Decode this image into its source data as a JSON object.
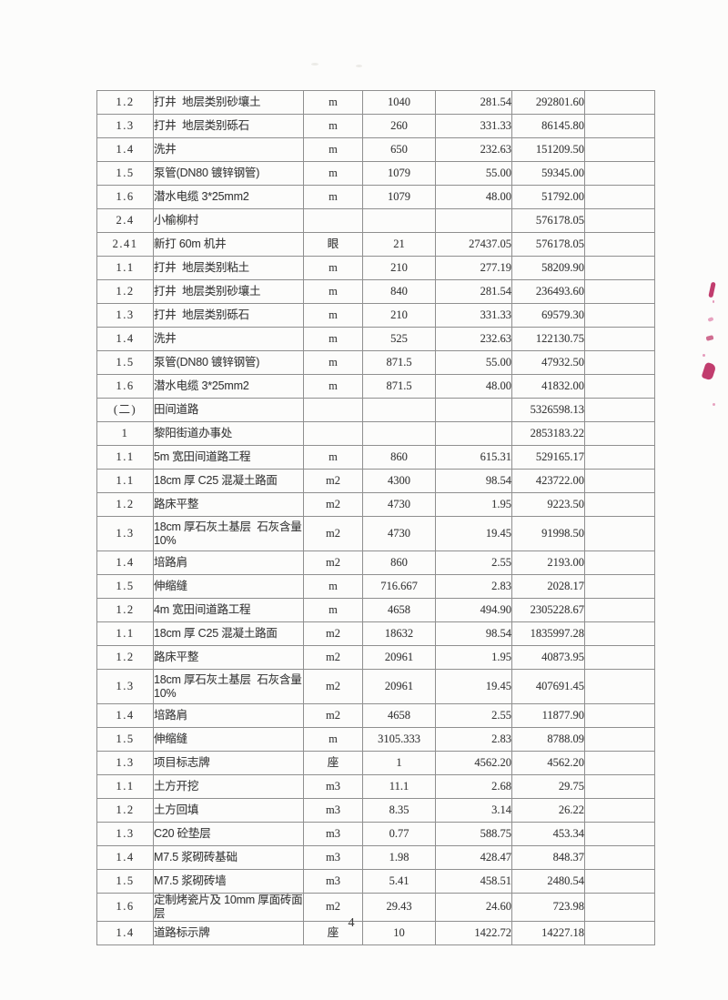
{
  "page": {
    "number": "4"
  },
  "scan_marks": {
    "color": "#c13d6e",
    "color_light": "#d8689a"
  },
  "table": {
    "rows": [
      {
        "seq": "1.2",
        "name": "打井  地层类别砂壤土",
        "unit": "m",
        "qty": "1040",
        "price": "281.54",
        "amount": "292801.60",
        "blank": ""
      },
      {
        "seq": "1.3",
        "name": "打井  地层类别砾石",
        "unit": "m",
        "qty": "260",
        "price": "331.33",
        "amount": "86145.80",
        "blank": ""
      },
      {
        "seq": "1.4",
        "name": "洗井",
        "unit": "m",
        "qty": "650",
        "price": "232.63",
        "amount": "151209.50",
        "blank": ""
      },
      {
        "seq": "1.5",
        "name": "泵管(DN80 镀锌钢管)",
        "unit": "m",
        "qty": "1079",
        "price": "55.00",
        "amount": "59345.00",
        "blank": ""
      },
      {
        "seq": "1.6",
        "name": "潜水电缆 3*25mm2",
        "unit": "m",
        "qty": "1079",
        "price": "48.00",
        "amount": "51792.00",
        "blank": ""
      },
      {
        "seq": "2.4",
        "name": "小榆柳村",
        "unit": "",
        "qty": "",
        "price": "",
        "amount": "576178.05",
        "blank": ""
      },
      {
        "seq": "2.41",
        "name": "新打 60m 机井",
        "unit": "眼",
        "qty": "21",
        "price": "27437.05",
        "amount": "576178.05",
        "blank": ""
      },
      {
        "seq": "1.1",
        "name": "打井  地层类别粘土",
        "unit": "m",
        "qty": "210",
        "price": "277.19",
        "amount": "58209.90",
        "blank": ""
      },
      {
        "seq": "1.2",
        "name": "打井  地层类别砂壤土",
        "unit": "m",
        "qty": "840",
        "price": "281.54",
        "amount": "236493.60",
        "blank": ""
      },
      {
        "seq": "1.3",
        "name": "打井  地层类别砾石",
        "unit": "m",
        "qty": "210",
        "price": "331.33",
        "amount": "69579.30",
        "blank": ""
      },
      {
        "seq": "1.4",
        "name": "洗井",
        "unit": "m",
        "qty": "525",
        "price": "232.63",
        "amount": "122130.75",
        "blank": ""
      },
      {
        "seq": "1.5",
        "name": "泵管(DN80 镀锌钢管)",
        "unit": "m",
        "qty": "871.5",
        "price": "55.00",
        "amount": "47932.50",
        "blank": ""
      },
      {
        "seq": "1.6",
        "name": "潜水电缆 3*25mm2",
        "unit": "m",
        "qty": "871.5",
        "price": "48.00",
        "amount": "41832.00",
        "blank": ""
      },
      {
        "seq": "(二)",
        "name": "田间道路",
        "unit": "",
        "qty": "",
        "price": "",
        "amount": "5326598.13",
        "blank": ""
      },
      {
        "seq": "1",
        "name": "黎阳街道办事处",
        "unit": "",
        "qty": "",
        "price": "",
        "amount": "2853183.22",
        "blank": ""
      },
      {
        "seq": "1.1",
        "name": "5m 宽田间道路工程",
        "unit": "m",
        "qty": "860",
        "price": "615.31",
        "amount": "529165.17",
        "blank": ""
      },
      {
        "seq": "1.1",
        "name": "18cm 厚 C25 混凝土路面",
        "unit": "m2",
        "qty": "4300",
        "price": "98.54",
        "amount": "423722.00",
        "blank": ""
      },
      {
        "seq": "1.2",
        "name": "路床平整",
        "unit": "m2",
        "qty": "4730",
        "price": "1.95",
        "amount": "9223.50",
        "blank": ""
      },
      {
        "seq": "1.3",
        "name": "18cm 厚石灰土基层  石灰含量\n10%",
        "unit": "m2",
        "qty": "4730",
        "price": "19.45",
        "amount": "91998.50",
        "blank": "",
        "tall": true
      },
      {
        "seq": "1.4",
        "name": "培路肩",
        "unit": "m2",
        "qty": "860",
        "price": "2.55",
        "amount": "2193.00",
        "blank": ""
      },
      {
        "seq": "1.5",
        "name": "伸缩缝",
        "unit": "m",
        "qty": "716.667",
        "price": "2.83",
        "amount": "2028.17",
        "blank": ""
      },
      {
        "seq": "1.2",
        "name": "4m 宽田间道路工程",
        "unit": "m",
        "qty": "4658",
        "price": "494.90",
        "amount": "2305228.67",
        "blank": ""
      },
      {
        "seq": "1.1",
        "name": "18cm 厚 C25 混凝土路面",
        "unit": "m2",
        "qty": "18632",
        "price": "98.54",
        "amount": "1835997.28",
        "blank": ""
      },
      {
        "seq": "1.2",
        "name": "路床平整",
        "unit": "m2",
        "qty": "20961",
        "price": "1.95",
        "amount": "40873.95",
        "blank": ""
      },
      {
        "seq": "1.3",
        "name": "18cm 厚石灰土基层  石灰含量\n10%",
        "unit": "m2",
        "qty": "20961",
        "price": "19.45",
        "amount": "407691.45",
        "blank": "",
        "tall": true
      },
      {
        "seq": "1.4",
        "name": "培路肩",
        "unit": "m2",
        "qty": "4658",
        "price": "2.55",
        "amount": "11877.90",
        "blank": ""
      },
      {
        "seq": "1.5",
        "name": "伸缩缝",
        "unit": "m",
        "qty": "3105.333",
        "price": "2.83",
        "amount": "8788.09",
        "blank": ""
      },
      {
        "seq": "1.3",
        "name": "项目标志牌",
        "unit": "座",
        "qty": "1",
        "price": "4562.20",
        "amount": "4562.20",
        "blank": ""
      },
      {
        "seq": "1.1",
        "name": "土方开挖",
        "unit": "m3",
        "qty": "11.1",
        "price": "2.68",
        "amount": "29.75",
        "blank": ""
      },
      {
        "seq": "1.2",
        "name": "土方回填",
        "unit": "m3",
        "qty": "8.35",
        "price": "3.14",
        "amount": "26.22",
        "blank": ""
      },
      {
        "seq": "1.3",
        "name": "C20 砼垫层",
        "unit": "m3",
        "qty": "0.77",
        "price": "588.75",
        "amount": "453.34",
        "blank": ""
      },
      {
        "seq": "1.4",
        "name": "M7.5 浆砌砖基础",
        "unit": "m3",
        "qty": "1.98",
        "price": "428.47",
        "amount": "848.37",
        "blank": ""
      },
      {
        "seq": "1.5",
        "name": "M7.5 浆砌砖墙",
        "unit": "m3",
        "qty": "5.41",
        "price": "458.51",
        "amount": "2480.54",
        "blank": ""
      },
      {
        "seq": "1.6",
        "name": "定制烤瓷片及 10mm 厚面砖面层",
        "unit": "m2",
        "qty": "29.43",
        "price": "24.60",
        "amount": "723.98",
        "blank": ""
      },
      {
        "seq": "1.4",
        "name": "道路标示牌",
        "unit": "座",
        "qty": "10",
        "price": "1422.72",
        "amount": "14227.18",
        "blank": ""
      }
    ]
  }
}
